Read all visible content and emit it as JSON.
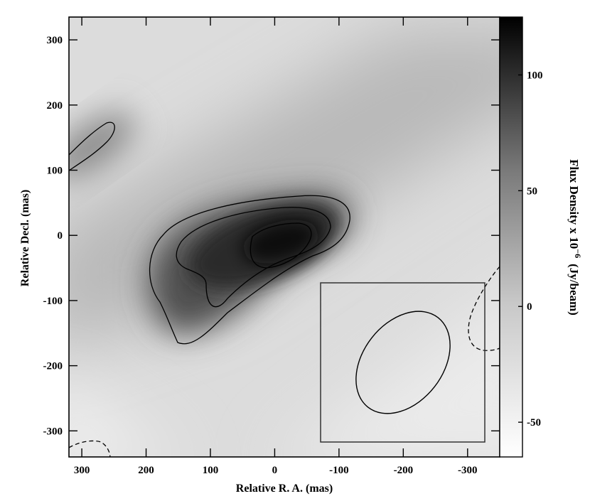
{
  "chart_data": {
    "type": "heatmap",
    "xlabel": "Relative R. A. (mas)",
    "ylabel": "Relative Decl. (mas)",
    "xlim": [
      320,
      -350
    ],
    "ylim": [
      -340,
      335
    ],
    "x_ticks": [
      300,
      200,
      100,
      0,
      -100,
      -200,
      -300
    ],
    "y_ticks": [
      300,
      200,
      100,
      0,
      -100,
      -200,
      -300
    ],
    "colorbar": {
      "label_main": "Flux Density x 10",
      "label_exponent": "−6",
      "label_unit": "(Jy/beam)",
      "range": [
        -65,
        125
      ],
      "ticks": [
        100,
        50,
        0,
        -50
      ],
      "colormap": "grayscale (white = low, black = high)"
    },
    "contours": {
      "solid_levels": [
        "outer",
        "middle",
        "inner"
      ],
      "dashed_levels": [
        "negative"
      ],
      "line_color": "#000000"
    },
    "peak": {
      "x": 0,
      "y": -10
    },
    "beam_box": {
      "x_range": [
        -55,
        -310
      ],
      "y_range": [
        -70,
        -315
      ]
    },
    "beam_ellipse": {
      "center_x": -190,
      "center_y": -190,
      "note": "restoring beam"
    }
  }
}
